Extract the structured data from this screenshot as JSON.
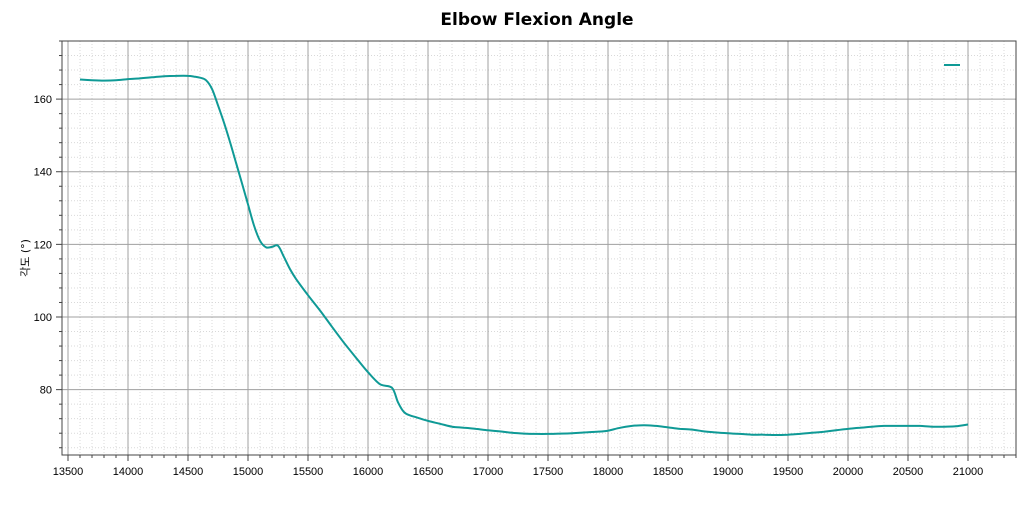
{
  "chart_data": {
    "type": "line",
    "title": "Elbow Flexion Angle",
    "xlabel": "",
    "ylabel": "각도 (°)",
    "xlim": [
      13450,
      21400
    ],
    "ylim": [
      62,
      176
    ],
    "x_ticks": [
      13500,
      14000,
      14500,
      15000,
      15500,
      16000,
      16500,
      17000,
      17500,
      18000,
      18500,
      19000,
      19500,
      20000,
      20500,
      21000
    ],
    "y_ticks": [
      80,
      100,
      120,
      140,
      160
    ],
    "grid": true,
    "legend_position": "top-right",
    "series": [
      {
        "name": "",
        "color": "#0f9a96",
        "x": [
          13600,
          13700,
          13800,
          13900,
          14000,
          14100,
          14200,
          14300,
          14400,
          14500,
          14550,
          14600,
          14650,
          14700,
          14750,
          14800,
          14850,
          14900,
          14950,
          15000,
          15050,
          15100,
          15150,
          15200,
          15250,
          15300,
          15350,
          15400,
          15500,
          15600,
          15700,
          15800,
          15900,
          16000,
          16100,
          16200,
          16250,
          16300,
          16350,
          16400,
          16500,
          16600,
          16700,
          16800,
          16900,
          17000,
          17100,
          17200,
          17300,
          17400,
          17500,
          17600,
          17700,
          17800,
          17900,
          18000,
          18100,
          18200,
          18300,
          18400,
          18500,
          18600,
          18700,
          18800,
          18900,
          19000,
          19100,
          19200,
          19300,
          19400,
          19500,
          19600,
          19700,
          19800,
          19900,
          20000,
          20100,
          20200,
          20300,
          20400,
          20500,
          20600,
          20700,
          20800,
          20900,
          21000
        ],
        "y": [
          165.4,
          165.2,
          165.1,
          165.2,
          165.5,
          165.7,
          166.0,
          166.3,
          166.4,
          166.4,
          166.2,
          165.9,
          165.2,
          162.8,
          158.3,
          153.5,
          148.2,
          142.5,
          136.8,
          131.0,
          125.2,
          121.0,
          119.2,
          119.3,
          119.6,
          116.5,
          113.2,
          110.5,
          106.0,
          101.8,
          97.3,
          92.9,
          88.8,
          84.8,
          81.5,
          80.5,
          76.5,
          73.8,
          72.9,
          72.4,
          71.4,
          70.6,
          69.8,
          69.5,
          69.2,
          68.8,
          68.5,
          68.1,
          67.9,
          67.8,
          67.8,
          67.9,
          68.0,
          68.2,
          68.4,
          68.7,
          69.5,
          70.0,
          70.2,
          70.0,
          69.6,
          69.2,
          69.0,
          68.5,
          68.2,
          68.0,
          67.8,
          67.6,
          67.6,
          67.5,
          67.6,
          67.8,
          68.1,
          68.4,
          68.8,
          69.2,
          69.5,
          69.8,
          70.0,
          70.0,
          70.0,
          70.0,
          69.8,
          69.8,
          69.9,
          70.4
        ]
      }
    ]
  }
}
